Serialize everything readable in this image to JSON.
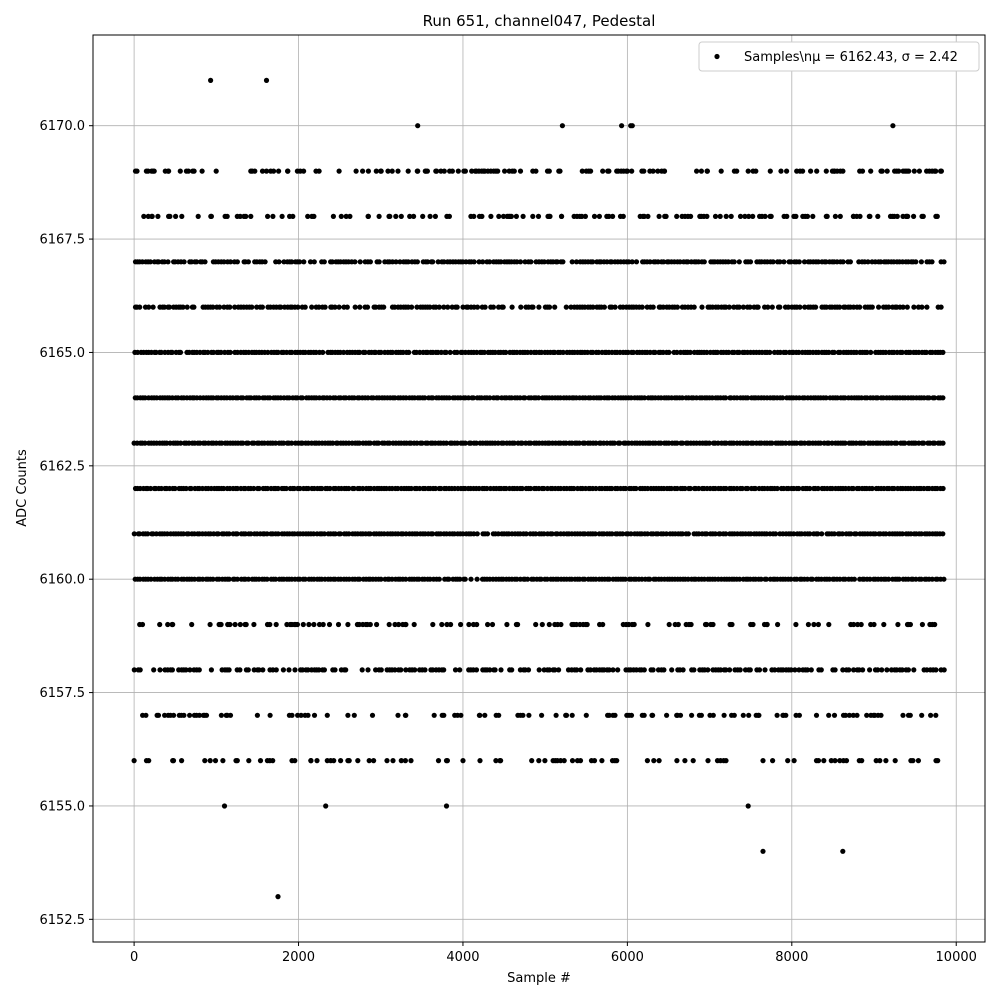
{
  "chart_data": {
    "type": "scatter",
    "title": "Run 651, channel047, Pedestal",
    "xlabel": "Sample #",
    "ylabel": "ADC Counts",
    "xlim": [
      -500,
      10350
    ],
    "ylim": [
      6152.0,
      6172.0
    ],
    "x_ticks": [
      0,
      2000,
      4000,
      6000,
      8000,
      10000
    ],
    "x_tick_labels": [
      "0",
      "2000",
      "4000",
      "6000",
      "8000",
      "10000"
    ],
    "y_ticks": [
      6152.5,
      6155.0,
      6157.5,
      6160.0,
      6162.5,
      6165.0,
      6167.5,
      6170.0
    ],
    "y_tick_labels": [
      "6152.5",
      "6155.0",
      "6157.5",
      "6160.0",
      "6162.5",
      "6165.0",
      "6167.5",
      "6170.0"
    ],
    "grid": true,
    "legend_position": "top-right",
    "marker_color": "#000000",
    "series": [
      {
        "name": "Samples\\nμ = 6162.43, σ = 2.42",
        "level_counts": [
          {
            "y": 6153,
            "sample_x": [
              1750
            ]
          },
          {
            "y": 6154,
            "sample_x": [
              7650,
              8620
            ]
          },
          {
            "y": 6155,
            "sample_x": [
              1100,
              2330,
              3800,
              7470
            ]
          },
          {
            "y": 6156,
            "sample_x": [
              0,
              470,
              860,
              1080,
              1650,
              1920,
              2150,
              2350,
              2600,
              2860,
              3300,
              3800,
              4000,
              4450,
              5430,
              5600,
              5870,
              6700,
              7200,
              7650,
              7950,
              8300,
              8480,
              9070
            ],
            "fill_fraction": 0.25
          },
          {
            "y": 6157,
            "sample_x": [
              280,
              550,
              880,
              1120,
              1500,
              1920,
              2350,
              2600,
              2900,
              3300,
              3650,
              3900,
              4200,
              4700,
              5250,
              5500,
              5850,
              6300,
              6600,
              6900,
              7300,
              7600,
              7900,
              8300,
              8700,
              9050,
              9420
            ],
            "fill_fraction": 0.32
          },
          {
            "y": 6158,
            "sample_x": [],
            "fill_fraction": 0.72
          },
          {
            "y": 6159,
            "sample_x": [
              470,
              700,
              1050,
              1350,
              1650,
              1950,
              2300,
              2600,
              2950,
              3300,
              3850,
              4300,
              4650,
              5050,
              5350,
              5700,
              6250,
              6750,
              6950,
              7250,
              7500,
              7700,
              8050,
              8450,
              8800,
              9000,
              9420
            ],
            "fill_fraction": 0.28
          },
          {
            "y": 6160,
            "sample_x": [],
            "fill_fraction": 0.97
          },
          {
            "y": 6161,
            "sample_x": [],
            "fill_fraction": 0.98
          },
          {
            "y": 6162,
            "sample_x": [],
            "fill_fraction": 1.0
          },
          {
            "y": 6163,
            "sample_x": [],
            "fill_fraction": 1.0
          },
          {
            "y": 6164,
            "sample_x": [],
            "fill_fraction": 1.0
          },
          {
            "y": 6165,
            "sample_x": [],
            "fill_fraction": 0.97
          },
          {
            "y": 6166,
            "sample_x": [],
            "fill_fraction": 0.78
          },
          {
            "y": 6167,
            "sample_x": [],
            "fill_fraction": 0.82
          },
          {
            "y": 6168,
            "sample_x": [
              220,
              290,
              420,
              580,
              780,
              940,
              1420,
              1800,
              1930,
              2850,
              2980,
              3100,
              3250,
              3400,
              3510,
              3600,
              4230,
              4560,
              4650,
              4850,
              5050,
              5200,
              5600,
              5750,
              5950,
              6250,
              6600,
              6900,
              7750,
              8050,
              8420,
              8750,
              8950,
              9200,
              9400,
              9600
            ],
            "fill_fraction": 0.3
          },
          {
            "y": 6169,
            "sample_x": [
              230,
              380,
              420,
              660,
              730,
              1420,
              1610,
              1870,
              2250,
              2700,
              2850,
              3000,
              3450,
              3550,
              3680,
              4150,
              4250,
              4600,
              4700,
              4850,
              5050,
              5180,
              5500,
              5700,
              5870,
              6000,
              6200,
              6450,
              6900,
              6970,
              8060,
              8420,
              8520,
              8960,
              9100,
              9300,
              9400,
              9750,
              9820
            ],
            "fill_fraction": 0.35
          },
          {
            "y": 6170,
            "sample_x": [
              3450,
              5210,
              5930,
              6040,
              6060,
              9230
            ]
          },
          {
            "y": 6171,
            "sample_x": [
              930,
              1610
            ]
          }
        ]
      }
    ]
  }
}
